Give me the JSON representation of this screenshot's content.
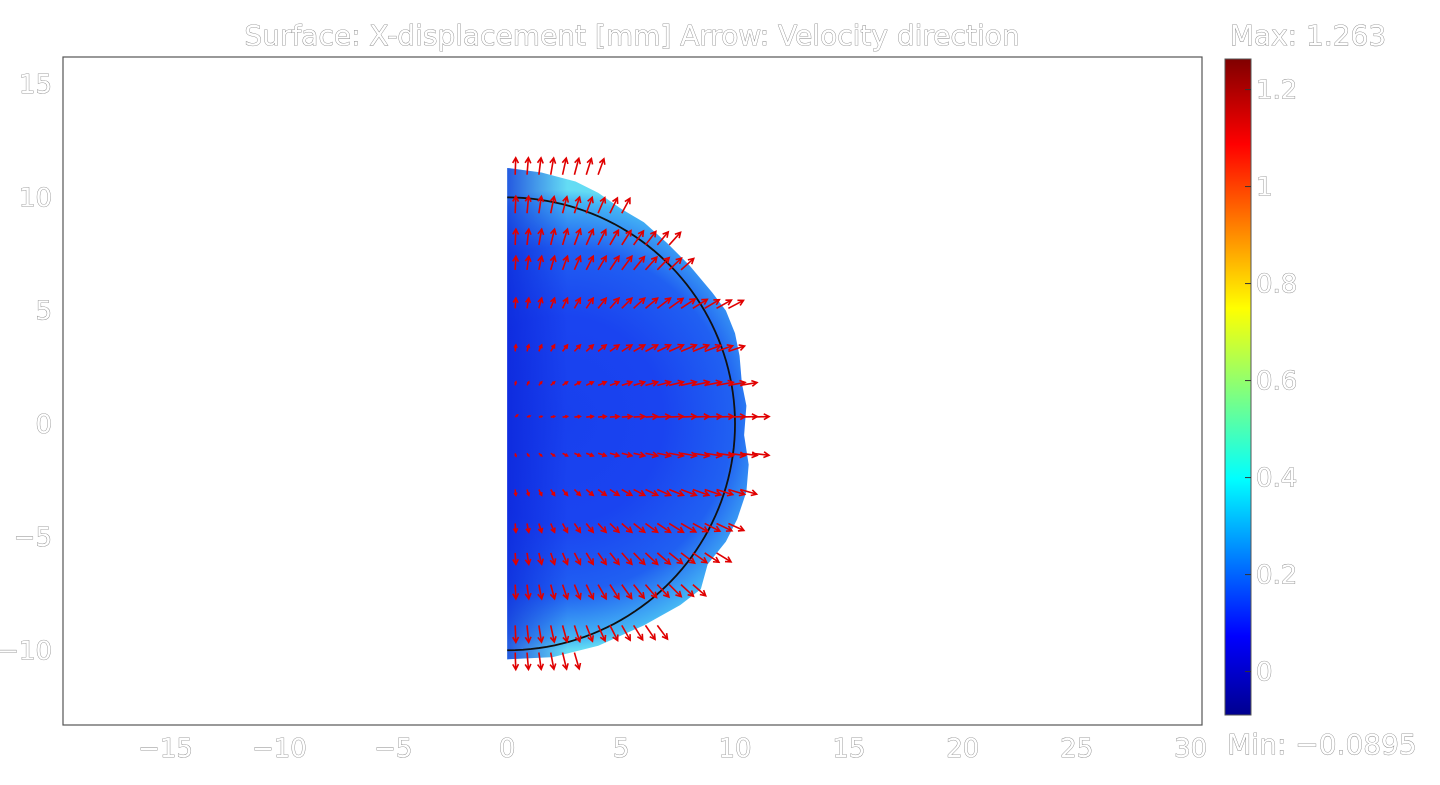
{
  "chart_data": {
    "type": "heatmap",
    "title": "Surface: X-displacement [mm]    Arrow: Velocity direction",
    "xlim": [
      -19.5,
      30.5
    ],
    "ylim": [
      -13.3,
      16.2
    ],
    "x_ticks": [
      -15,
      -10,
      -5,
      0,
      5,
      10,
      15,
      20,
      25,
      30
    ],
    "x_tick_labels": [
      "−15",
      "−10",
      "−5",
      "0",
      "5",
      "10",
      "15",
      "20",
      "25",
      "30"
    ],
    "y_ticks": [
      15,
      10,
      5,
      0,
      -5,
      -10
    ],
    "y_tick_labels": [
      "15",
      "10",
      "5",
      "0",
      "−5",
      "−10"
    ],
    "grid": false,
    "surface": {
      "quantity": "X-displacement",
      "unit": "mm",
      "reference_circle_radius": 10,
      "deformed_boundary": [
        [
          0,
          11.3
        ],
        [
          1.5,
          11.1
        ],
        [
          3,
          10.7
        ],
        [
          4,
          10.2
        ],
        [
          5,
          9.5
        ],
        [
          6,
          8.9
        ],
        [
          7,
          8.0
        ],
        [
          8,
          7.0
        ],
        [
          9,
          5.8
        ],
        [
          9.6,
          5.0
        ],
        [
          10.0,
          4.0
        ],
        [
          10.2,
          3.0
        ],
        [
          10.3,
          1.8
        ],
        [
          10.5,
          0.8
        ],
        [
          10.4,
          -0.5
        ],
        [
          10.6,
          -1.8
        ],
        [
          10.5,
          -3.0
        ],
        [
          10.1,
          -4.2
        ],
        [
          9.6,
          -5.2
        ],
        [
          8.8,
          -6.2
        ],
        [
          8.5,
          -7.3
        ],
        [
          7.6,
          -8.0
        ],
        [
          6.0,
          -8.9
        ],
        [
          4.0,
          -9.8
        ],
        [
          2.0,
          -10.3
        ],
        [
          0,
          -10.4
        ]
      ]
    },
    "arrows": {
      "quantity": "Velocity direction",
      "color": "#e00000",
      "rows": [
        {
          "y": 11.0,
          "x_max": 4.0
        },
        {
          "y": 9.3,
          "x_max": 5.3
        },
        {
          "y": 7.9,
          "x_max": 7.3
        },
        {
          "y": 6.8,
          "x_max": 7.8
        },
        {
          "y": 5.1,
          "x_max": 10.0
        },
        {
          "y": 3.2,
          "x_max": 9.7
        },
        {
          "y": 1.7,
          "x_max": 10.7
        },
        {
          "y": 0.3,
          "x_max": 10.8
        },
        {
          "y": -1.3,
          "x_max": 10.8
        },
        {
          "y": -2.9,
          "x_max": 10.7
        },
        {
          "y": -4.4,
          "x_max": 9.8
        },
        {
          "y": -5.7,
          "x_max": 9.3
        },
        {
          "y": -7.1,
          "x_max": 8.6
        },
        {
          "y": -8.9,
          "x_max": 6.6
        },
        {
          "y": -10.1,
          "x_max": 3.0
        }
      ]
    },
    "colorbar": {
      "min": -0.0895,
      "max": 1.263,
      "max_label": "Max: 1.263",
      "min_label": "Min: −0.0895",
      "ticks": [
        1.2,
        1,
        0.8,
        0.6,
        0.4,
        0.2,
        0
      ],
      "tick_labels": [
        "1.2",
        "1",
        "0.8",
        "0.6",
        "0.4",
        "0.2",
        "0"
      ],
      "colormap": "rainbow (jet)"
    }
  }
}
